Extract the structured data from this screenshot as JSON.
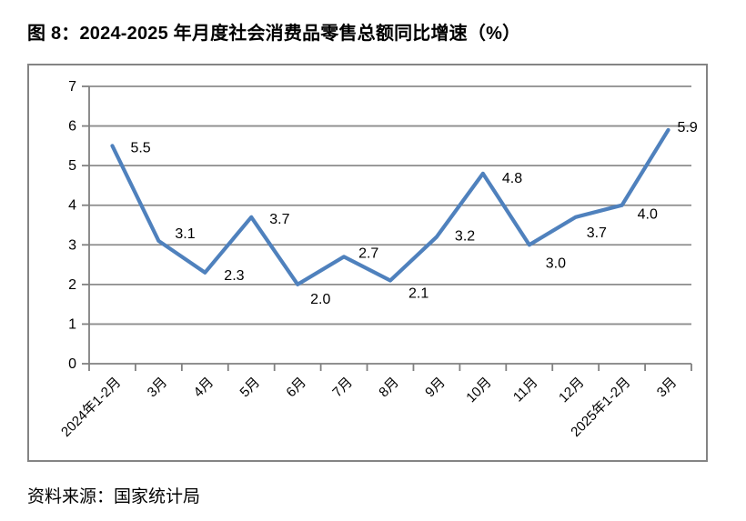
{
  "chart_data": {
    "type": "line",
    "title": "图 8：2024-2025 年月度社会消费品零售总额同比增速（%）",
    "categories": [
      "2024年1-2月",
      "3月",
      "4月",
      "5月",
      "6月",
      "7月",
      "8月",
      "9月",
      "10月",
      "11月",
      "12月",
      "2025年1-2月",
      "3月"
    ],
    "values": [
      5.5,
      3.1,
      2.3,
      3.7,
      2.0,
      2.7,
      2.1,
      3.2,
      4.8,
      3.0,
      3.7,
      4.0,
      5.9
    ],
    "data_labels": [
      "5.5",
      "3.1",
      "2.3",
      "3.7",
      "2.0",
      "2.7",
      "2.1",
      "3.2",
      "4.8",
      "3.0",
      "3.7",
      "4.0",
      "5.9"
    ],
    "ytick_labels": [
      "0",
      "1",
      "2",
      "3",
      "4",
      "5",
      "6",
      "7"
    ],
    "ylim": [
      0,
      7
    ],
    "ytick_interval": 1,
    "grid": "horizontal",
    "legend_position": "none",
    "colors": {
      "line": "#4F81BD",
      "grid": "#8C8C8C",
      "axis": "#808080",
      "text": "#000000",
      "border": "#848484"
    }
  },
  "source": {
    "text": "资料来源：国家统计局"
  }
}
